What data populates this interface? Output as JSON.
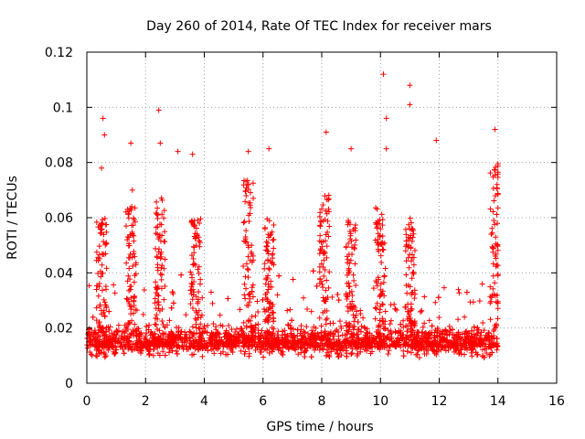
{
  "chart_data": {
    "type": "scatter",
    "title": "Day 260 of 2014, Rate Of TEC Index for receiver mars",
    "xlabel": "GPS time / hours",
    "ylabel": "ROTI / TECUs",
    "xlim": [
      0,
      16
    ],
    "ylim": [
      0,
      0.12
    ],
    "xticks": [
      0,
      2,
      4,
      6,
      8,
      10,
      12,
      14,
      16
    ],
    "xtick_labels": [
      "0",
      "2",
      "4",
      "6",
      "8",
      "10",
      "12",
      "14",
      "16"
    ],
    "yticks": [
      0,
      0.02,
      0.04,
      0.06,
      0.08,
      0.1,
      0.12
    ],
    "ytick_labels": [
      "0",
      "0.02",
      "0.04",
      "0.06",
      "0.08",
      "0.1",
      "0.12"
    ],
    "grid": true,
    "marker": "+",
    "color": "#ff0000",
    "data_range_x": [
      0,
      14
    ],
    "baseline_level": 0.013,
    "notable_points": [
      {
        "x": 0.55,
        "y": 0.096
      },
      {
        "x": 0.6,
        "y": 0.09
      },
      {
        "x": 0.5,
        "y": 0.078
      },
      {
        "x": 1.5,
        "y": 0.087
      },
      {
        "x": 1.55,
        "y": 0.07
      },
      {
        "x": 2.45,
        "y": 0.099
      },
      {
        "x": 2.5,
        "y": 0.087
      },
      {
        "x": 3.1,
        "y": 0.084
      },
      {
        "x": 3.6,
        "y": 0.083
      },
      {
        "x": 5.5,
        "y": 0.084
      },
      {
        "x": 6.2,
        "y": 0.085
      },
      {
        "x": 8.15,
        "y": 0.091
      },
      {
        "x": 9.0,
        "y": 0.085
      },
      {
        "x": 10.1,
        "y": 0.112
      },
      {
        "x": 10.2,
        "y": 0.096
      },
      {
        "x": 10.2,
        "y": 0.085
      },
      {
        "x": 11.0,
        "y": 0.108
      },
      {
        "x": 11.0,
        "y": 0.101
      },
      {
        "x": 11.9,
        "y": 0.088
      },
      {
        "x": 13.9,
        "y": 0.092
      }
    ],
    "bursts": [
      {
        "x": 0.5,
        "y": 0.06
      },
      {
        "x": 1.5,
        "y": 0.065
      },
      {
        "x": 2.5,
        "y": 0.07
      },
      {
        "x": 3.7,
        "y": 0.06
      },
      {
        "x": 5.5,
        "y": 0.075
      },
      {
        "x": 6.2,
        "y": 0.06
      },
      {
        "x": 8.1,
        "y": 0.07
      },
      {
        "x": 9.0,
        "y": 0.06
      },
      {
        "x": 10.0,
        "y": 0.065
      },
      {
        "x": 11.0,
        "y": 0.06
      },
      {
        "x": 13.9,
        "y": 0.08
      }
    ]
  }
}
